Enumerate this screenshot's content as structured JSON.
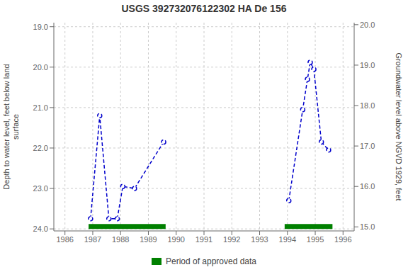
{
  "chart_data": {
    "type": "line",
    "title": "USGS 392732076122302 HA De 156",
    "series": [
      {
        "x": [
          1986.92,
          1987.25,
          1987.58,
          1987.88,
          1988.08,
          1988.5,
          1989.55
        ],
        "values": [
          23.75,
          21.2,
          23.75,
          23.75,
          22.95,
          23.0,
          21.85
        ],
        "color": "#0000cc",
        "line_style": "dashed",
        "marker": "o"
      },
      {
        "x": [
          1994.05,
          1994.55,
          1994.72,
          1994.82,
          1994.95,
          1995.22,
          1995.48
        ],
        "values": [
          23.3,
          21.05,
          20.3,
          19.88,
          20.05,
          21.85,
          22.05
        ],
        "color": "#0000cc",
        "line_style": "dashed",
        "marker": "o"
      }
    ],
    "xlim": [
      1985.6,
      1996.4
    ],
    "xticks": [
      1986,
      1987,
      1988,
      1989,
      1990,
      1991,
      1992,
      1993,
      1994,
      1995,
      1996
    ],
    "ylim": [
      24.05,
      18.9
    ],
    "yticks": [
      {
        "value": 19.0,
        "label": "19.0"
      },
      {
        "value": 20.0,
        "label": "20.0"
      },
      {
        "value": 21.0,
        "label": "21.0"
      },
      {
        "value": 22.0,
        "label": "22.0"
      },
      {
        "value": 23.0,
        "label": "23.0"
      },
      {
        "value": 24.0,
        "label": "24.0"
      }
    ],
    "y2lim": [
      14.9,
      20.05
    ],
    "y2ticks": [
      {
        "value": 15.0,
        "label": "15.0"
      },
      {
        "value": 16.0,
        "label": "16.0"
      },
      {
        "value": 17.0,
        "label": "17.0"
      },
      {
        "value": 18.0,
        "label": "18.0"
      },
      {
        "value": 19.0,
        "label": "19.0"
      },
      {
        "value": 20.0,
        "label": "20.0"
      }
    ],
    "ylabel": "Depth to water level, feet below land\nsurface",
    "y2label": "Groundwater level above NGVD 1929, feet",
    "grid": true,
    "legend": "bottom",
    "approved_periods": {
      "name": "Period of approved data",
      "color": "#008000",
      "ranges": [
        [
          1986.85,
          1989.62
        ],
        [
          1993.9,
          1995.62
        ]
      ],
      "y": [
        23.88,
        24.0
      ]
    }
  }
}
